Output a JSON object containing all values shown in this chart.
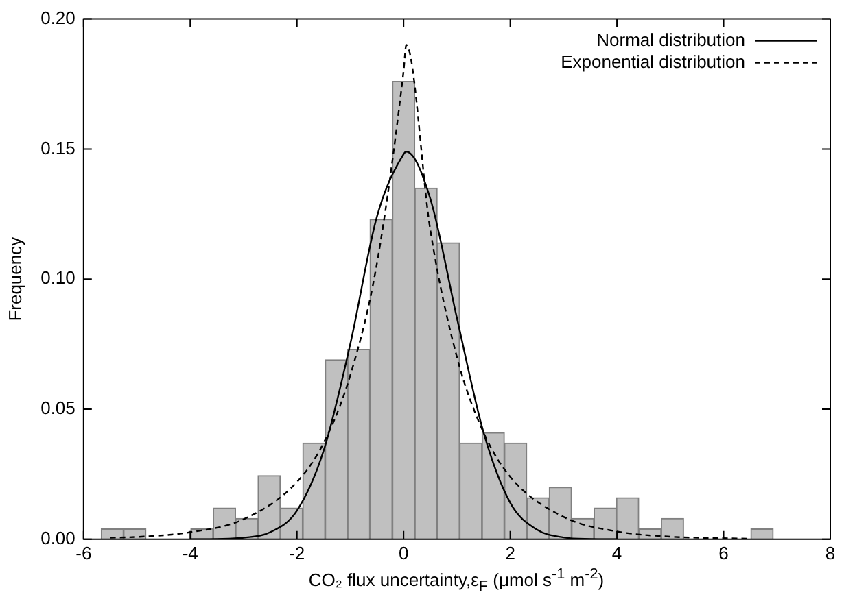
{
  "chart_data": {
    "type": "histogram",
    "xlabel": "CO₂ flux uncertainty,ε$_{F}$  (μmol s$^{-1}$ m$^{-2}$)",
    "ylabel": "Frequency",
    "bins": [
      -5.67,
      -5.25,
      -4.83,
      -4.41,
      -3.99,
      -3.57,
      -3.15,
      -2.73,
      -2.31,
      -1.89,
      -1.47,
      -1.05,
      -0.63,
      -0.21,
      0.21,
      0.63,
      1.05,
      1.47,
      1.89,
      2.31,
      2.73,
      3.15,
      3.57,
      3.99,
      4.41,
      4.83,
      5.25,
      5.67,
      6.09,
      6.51,
      6.93
    ],
    "values": [
      0.004,
      0.004,
      0,
      0,
      0.004,
      0.012,
      0.008,
      0.0245,
      0.012,
      0.037,
      0.069,
      0.073,
      0.123,
      0.176,
      0.135,
      0.114,
      0.037,
      0.041,
      0.037,
      0.016,
      0.02,
      0.008,
      0.012,
      0.016,
      0.004,
      0.008,
      0,
      0,
      0,
      0.004
    ],
    "color": "#c0c0c0",
    "series": [
      {
        "name": "Normal distribution",
        "type": "line",
        "color": "#000000",
        "line_style": "solid",
        "x": [
          -4,
          -3.5,
          -3,
          -2.5,
          -2,
          -1.5,
          -1,
          -0.5,
          0,
          0.05,
          0.5,
          1,
          1.5,
          2,
          2.5,
          3,
          3.5,
          4
        ],
        "values": [
          0,
          0.0001,
          0.0006,
          0.0027,
          0.011,
          0.034,
          0.075,
          0.124,
          0.148,
          0.149,
          0.131,
          0.085,
          0.041,
          0.014,
          0.0037,
          0.0007,
          0.0001,
          0
        ]
      },
      {
        "name": "Exponential distribution",
        "type": "line",
        "color": "#000000",
        "line_style": "dashed",
        "x": [
          -5.5,
          -5,
          -4,
          -3,
          -2,
          -1.5,
          -1,
          -0.5,
          0,
          0.05,
          0.5,
          1,
          1.5,
          2,
          3,
          4,
          5,
          6,
          6.5
        ],
        "values": [
          0.0006,
          0.0009,
          0.0027,
          0.0077,
          0.022,
          0.037,
          0.063,
          0.106,
          0.18,
          0.19,
          0.119,
          0.07,
          0.041,
          0.024,
          0.0086,
          0.003,
          0.001,
          0.0004,
          0.0002
        ]
      }
    ],
    "xlim": [
      -6,
      8
    ],
    "xticks": [
      -6,
      -4,
      -2,
      0,
      2,
      4,
      6,
      8
    ],
    "ylim": [
      0,
      0.2
    ],
    "yticks": [
      {
        "value": 0,
        "label": "0.00"
      },
      {
        "value": 0.05,
        "label": "0.05"
      },
      {
        "value": 0.1,
        "label": "0.10"
      },
      {
        "value": 0.15,
        "label": "0.15"
      },
      {
        "value": 0.2,
        "label": "0.20"
      }
    ],
    "legend": "top right",
    "grid": false,
    "marker": "none"
  }
}
